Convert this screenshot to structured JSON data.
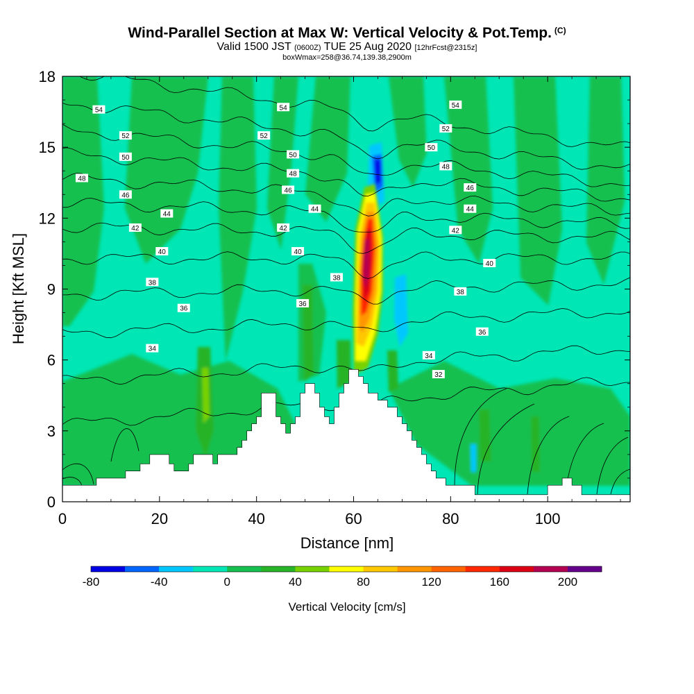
{
  "header": {
    "title_main": "Wind-Parallel Section at Max W: Vertical Velocity & Pot.Temp.",
    "title_mark": "(C)",
    "valid_pre": "Valid 1500 JST",
    "valid_utc": "(0600Z)",
    "valid_date": "TUE 25 Aug 2020",
    "forecast": "[12hrFcst@2315z]",
    "box_info": "boxWmax=258@36.74,139.38,2900m"
  },
  "colors": {
    "background_field": "#00e6b4",
    "bands": [
      "#0000e6",
      "#0064ff",
      "#00c8ff",
      "#00e6b4",
      "#14c050",
      "#28b428",
      "#78d200",
      "#ffff00",
      "#ffc800",
      "#ff9600",
      "#ff6400",
      "#ff2800",
      "#dc0014",
      "#b40050",
      "#64008c"
    ]
  },
  "chart_data": {
    "type": "heatmap",
    "xlabel": "Distance [nm]",
    "ylabel": "Height [Kft MSL]",
    "xlim": [
      0,
      117
    ],
    "ylim": [
      0,
      18
    ],
    "xticks": [
      0,
      20,
      40,
      60,
      80,
      100
    ],
    "yticks": [
      0,
      3,
      6,
      9,
      12,
      15,
      18
    ],
    "colorbar": {
      "label": "Vertical Velocity [cm/s]",
      "min": -80,
      "max": 220,
      "step": 20,
      "ticks": [
        -80,
        -40,
        0,
        40,
        80,
        120,
        160,
        200
      ]
    },
    "terrain": [
      [
        0,
        0.7
      ],
      [
        7,
        0.7
      ],
      [
        7,
        1
      ],
      [
        13,
        1
      ],
      [
        13,
        1.3
      ],
      [
        16,
        1.3
      ],
      [
        16,
        1.6
      ],
      [
        18,
        1.6
      ],
      [
        18,
        2
      ],
      [
        22,
        2
      ],
      [
        22,
        1.6
      ],
      [
        23,
        1.6
      ],
      [
        23,
        1.3
      ],
      [
        26,
        1.3
      ],
      [
        26,
        1.6
      ],
      [
        27,
        1.6
      ],
      [
        27,
        2
      ],
      [
        31,
        2
      ],
      [
        31,
        1.6
      ],
      [
        32,
        1.6
      ],
      [
        32,
        2
      ],
      [
        36,
        2
      ],
      [
        36,
        2.3
      ],
      [
        37,
        2.3
      ],
      [
        37,
        2.6
      ],
      [
        38,
        2.6
      ],
      [
        38,
        3
      ],
      [
        39,
        3
      ],
      [
        39,
        3.3
      ],
      [
        40,
        3.3
      ],
      [
        40,
        3.6
      ],
      [
        41,
        3.6
      ],
      [
        41,
        4.6
      ],
      [
        44,
        4.6
      ],
      [
        44,
        3.6
      ],
      [
        45,
        3.6
      ],
      [
        45,
        3.3
      ],
      [
        46,
        3.3
      ],
      [
        46,
        2.9
      ],
      [
        47,
        2.9
      ],
      [
        47,
        3.3
      ],
      [
        48,
        3.3
      ],
      [
        48,
        3.6
      ],
      [
        49,
        3.6
      ],
      [
        49,
        4.6
      ],
      [
        50,
        4.6
      ],
      [
        50,
        5
      ],
      [
        52,
        5
      ],
      [
        52,
        4.6
      ],
      [
        53,
        4.6
      ],
      [
        53,
        4
      ],
      [
        54,
        4
      ],
      [
        54,
        3.6
      ],
      [
        55,
        3.6
      ],
      [
        55,
        3.3
      ],
      [
        56,
        3.3
      ],
      [
        56,
        4
      ],
      [
        57,
        4
      ],
      [
        57,
        4.6
      ],
      [
        58,
        4.6
      ],
      [
        58,
        5
      ],
      [
        59,
        5
      ],
      [
        59,
        5.6
      ],
      [
        61,
        5.6
      ],
      [
        61,
        5.3
      ],
      [
        62,
        5.3
      ],
      [
        62,
        5
      ],
      [
        63,
        5
      ],
      [
        63,
        4.6
      ],
      [
        65,
        4.6
      ],
      [
        65,
        4.3
      ],
      [
        67,
        4.3
      ],
      [
        67,
        4
      ],
      [
        69,
        4
      ],
      [
        69,
        3.6
      ],
      [
        70,
        3.6
      ],
      [
        70,
        3.3
      ],
      [
        71,
        3.3
      ],
      [
        71,
        3
      ],
      [
        72,
        3
      ],
      [
        72,
        2.6
      ],
      [
        73,
        2.6
      ],
      [
        73,
        2.3
      ],
      [
        74,
        2.3
      ],
      [
        74,
        2
      ],
      [
        75,
        2
      ],
      [
        75,
        1.6
      ],
      [
        76,
        1.6
      ],
      [
        76,
        1.3
      ],
      [
        77,
        1.3
      ],
      [
        77,
        1
      ],
      [
        79,
        1
      ],
      [
        79,
        0.7
      ],
      [
        85,
        0.7
      ],
      [
        85,
        0.3
      ],
      [
        100,
        0.3
      ],
      [
        100,
        0.7
      ],
      [
        103,
        0.7
      ],
      [
        103,
        1
      ],
      [
        105,
        1
      ],
      [
        105,
        0.7
      ],
      [
        107,
        0.7
      ],
      [
        107,
        0.3
      ],
      [
        117,
        0.3
      ]
    ],
    "isentropes": [
      {
        "theta": 32,
        "y0": 4.2,
        "dip": 0.3
      },
      {
        "theta": 34,
        "y0": 5.8,
        "dip": 0.4
      },
      {
        "theta": 36,
        "y0": 7.6,
        "dip": 0.5
      },
      {
        "theta": 38,
        "y0": 9.0,
        "dip": 0.5
      },
      {
        "theta": 40,
        "y0": 10.3,
        "dip": 0.6
      },
      {
        "theta": 42,
        "y0": 11.4,
        "dip": 0.7
      },
      {
        "theta": 44,
        "y0": 12.2,
        "dip": 0.8
      },
      {
        "theta": 46,
        "y0": 13.0,
        "dip": 0.9
      },
      {
        "theta": 48,
        "y0": 13.8,
        "dip": 0.9
      },
      {
        "theta": 50,
        "y0": 14.6,
        "dip": 0.8
      },
      {
        "theta": 52,
        "y0": 15.5,
        "dip": 0.7
      },
      {
        "theta": 54,
        "y0": 16.6,
        "dip": 0.5
      }
    ],
    "contour_labels": [
      {
        "text": "54",
        "x": 7.5,
        "y": 16.6
      },
      {
        "text": "54",
        "x": 45.5,
        "y": 16.7
      },
      {
        "text": "54",
        "x": 81,
        "y": 16.8
      },
      {
        "text": "52",
        "x": 13,
        "y": 15.5
      },
      {
        "text": "52",
        "x": 41.5,
        "y": 15.5
      },
      {
        "text": "52",
        "x": 79,
        "y": 15.8
      },
      {
        "text": "50",
        "x": 13,
        "y": 14.6
      },
      {
        "text": "50",
        "x": 47.5,
        "y": 14.7
      },
      {
        "text": "50",
        "x": 76,
        "y": 15
      },
      {
        "text": "48",
        "x": 4,
        "y": 13.7
      },
      {
        "text": "48",
        "x": 47.5,
        "y": 13.9
      },
      {
        "text": "48",
        "x": 79,
        "y": 14.2
      },
      {
        "text": "46",
        "x": 13,
        "y": 13
      },
      {
        "text": "46",
        "x": 46.5,
        "y": 13.2
      },
      {
        "text": "46",
        "x": 84,
        "y": 13.3
      },
      {
        "text": "44",
        "x": 21.5,
        "y": 12.2
      },
      {
        "text": "44",
        "x": 52,
        "y": 12.4
      },
      {
        "text": "44",
        "x": 84,
        "y": 12.4
      },
      {
        "text": "42",
        "x": 15,
        "y": 11.6
      },
      {
        "text": "42",
        "x": 45.5,
        "y": 11.6
      },
      {
        "text": "42",
        "x": 81,
        "y": 11.5
      },
      {
        "text": "40",
        "x": 20.5,
        "y": 10.6
      },
      {
        "text": "40",
        "x": 48.5,
        "y": 10.6
      },
      {
        "text": "40",
        "x": 88,
        "y": 10.1
      },
      {
        "text": "38",
        "x": 18.5,
        "y": 9.3
      },
      {
        "text": "38",
        "x": 56.5,
        "y": 9.5
      },
      {
        "text": "38",
        "x": 82,
        "y": 8.9
      },
      {
        "text": "36",
        "x": 25,
        "y": 8.2
      },
      {
        "text": "36",
        "x": 49.5,
        "y": 8.4
      },
      {
        "text": "36",
        "x": 86.5,
        "y": 7.2
      },
      {
        "text": "34",
        "x": 18.5,
        "y": 6.5
      },
      {
        "text": "34",
        "x": 75.5,
        "y": 6.2
      },
      {
        "text": "32",
        "x": 77.5,
        "y": 5.4
      }
    ]
  }
}
